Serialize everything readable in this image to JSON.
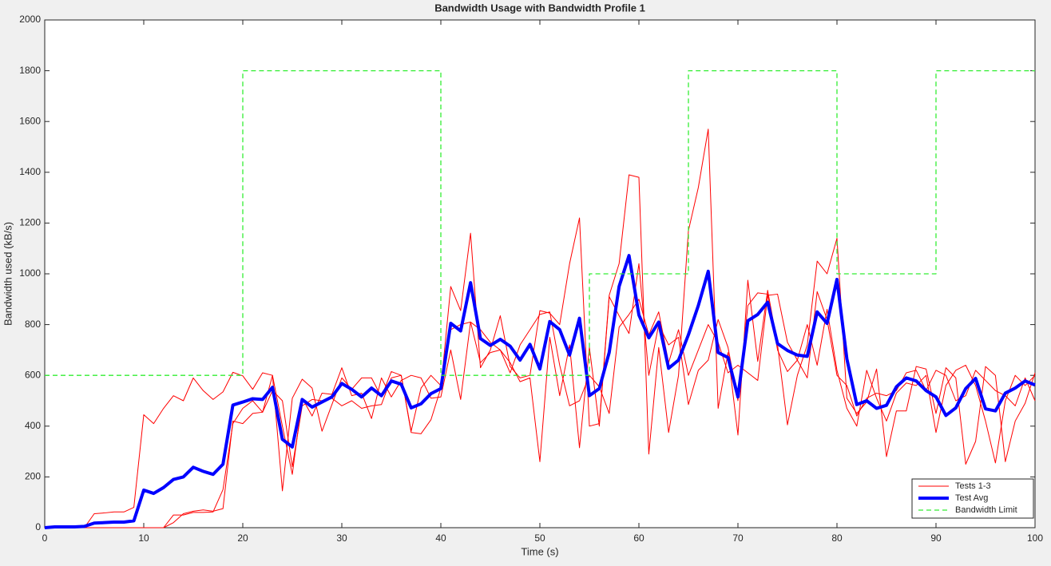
{
  "chart_data": {
    "type": "line",
    "title": "Bandwidth Usage with Bandwidth Profile 1",
    "x_label": "Time (s)",
    "y_label": "Bandwidth used (kB/s)",
    "xlim": [
      0,
      100
    ],
    "ylim": [
      0,
      2000
    ],
    "xticks": [
      0,
      10,
      20,
      30,
      40,
      50,
      60,
      70,
      80,
      90,
      100
    ],
    "yticks": [
      0,
      200,
      400,
      600,
      800,
      1000,
      1200,
      1400,
      1600,
      1800,
      2000
    ],
    "grid": false,
    "legend": "lower right",
    "x": [
      0,
      1,
      2,
      3,
      4,
      5,
      6,
      7,
      8,
      9,
      10,
      11,
      12,
      13,
      14,
      15,
      16,
      17,
      18,
      19,
      20,
      21,
      22,
      23,
      24,
      25,
      26,
      27,
      28,
      29,
      30,
      31,
      32,
      33,
      34,
      35,
      36,
      37,
      38,
      39,
      40,
      41,
      42,
      43,
      44,
      45,
      46,
      47,
      48,
      49,
      50,
      51,
      52,
      53,
      54,
      55,
      56,
      57,
      58,
      59,
      60,
      61,
      62,
      63,
      64,
      65,
      66,
      67,
      68,
      69,
      70,
      71,
      72,
      73,
      74,
      75,
      76,
      77,
      78,
      79,
      80,
      81,
      82,
      83,
      84,
      85,
      86,
      87,
      88,
      89,
      90,
      91,
      92,
      93,
      94,
      95,
      96,
      97,
      98,
      99,
      100
    ],
    "series": [
      {
        "name": "Tests 1-3",
        "color": "#ff0000",
        "line_width": 1,
        "dashed": false,
        "values": [
          0,
          0,
          0,
          0,
          0,
          55,
          58,
          62,
          62,
          80,
          445,
          410,
          470,
          520,
          500,
          590,
          540,
          505,
          535,
          612,
          598,
          545,
          610,
          600,
          145,
          510,
          585,
          550,
          380,
          485,
          590,
          545,
          590,
          590,
          515,
          615,
          600,
          375,
          370,
          425,
          550,
          950,
          855,
          1160,
          630,
          700,
          835,
          635,
          590,
          600,
          855,
          845,
          800,
          1040,
          1220,
          400,
          410,
          915,
          1040,
          1390,
          1380,
          290,
          710,
          375,
          600,
          1170,
          1340,
          1570,
          470,
          690,
          365,
          975,
          655,
          935,
          720,
          405,
          600,
          720,
          1050,
          1000,
          1140,
          510,
          450,
          495,
          625,
          280,
          460,
          460,
          635,
          625,
          450,
          630,
          590,
          250,
          340,
          635,
          600,
          260,
          420,
          490,
          610
        ]
      },
      {
        "color": "#ff0000",
        "line_width": 1,
        "dashed": false,
        "values": [
          0,
          0,
          0,
          0,
          0,
          0,
          0,
          0,
          0,
          0,
          0,
          0,
          0,
          20,
          55,
          65,
          70,
          65,
          75,
          420,
          410,
          450,
          455,
          600,
          400,
          210,
          510,
          440,
          530,
          525,
          630,
          520,
          530,
          430,
          590,
          515,
          580,
          600,
          590,
          510,
          515,
          700,
          505,
          810,
          650,
          690,
          700,
          650,
          575,
          590,
          260,
          750,
          520,
          720,
          315,
          710,
          400,
          910,
          835,
          765,
          1040,
          600,
          800,
          720,
          750,
          485,
          620,
          660,
          820,
          710,
          500,
          875,
          925,
          920,
          700,
          615,
          660,
          800,
          640,
          860,
          620,
          470,
          400,
          620,
          510,
          420,
          530,
          570,
          560,
          600,
          375,
          560,
          620,
          640,
          560,
          420,
          255,
          500,
          600,
          560,
          600
        ]
      },
      {
        "color": "#ff0000",
        "line_width": 1,
        "dashed": false,
        "values": [
          0,
          0,
          0,
          0,
          0,
          0,
          0,
          0,
          0,
          0,
          0,
          0,
          0,
          50,
          50,
          60,
          60,
          62,
          150,
          410,
          470,
          500,
          455,
          540,
          500,
          240,
          480,
          505,
          500,
          510,
          480,
          500,
          470,
          480,
          485,
          590,
          600,
          380,
          550,
          600,
          560,
          780,
          800,
          810,
          780,
          730,
          700,
          610,
          720,
          780,
          840,
          850,
          640,
          480,
          500,
          600,
          555,
          450,
          790,
          840,
          900,
          760,
          850,
          650,
          780,
          600,
          700,
          800,
          730,
          610,
          640,
          610,
          580,
          915,
          920,
          730,
          660,
          590,
          930,
          820,
          600,
          560,
          440,
          510,
          530,
          520,
          540,
          610,
          620,
          540,
          620,
          600,
          500,
          520,
          620,
          580,
          540,
          520,
          480,
          590,
          500
        ]
      },
      {
        "name": "Test Avg",
        "color": "#0000ff",
        "line_width": 4,
        "dashed": false,
        "values": [
          0,
          3,
          3,
          3,
          5,
          18,
          20,
          22,
          22,
          27,
          148,
          135,
          158,
          190,
          200,
          238,
          222,
          210,
          250,
          483,
          495,
          508,
          505,
          553,
          348,
          318,
          505,
          475,
          495,
          515,
          568,
          545,
          515,
          550,
          520,
          578,
          565,
          472,
          488,
          528,
          548,
          805,
          775,
          965,
          745,
          718,
          742,
          715,
          660,
          722,
          625,
          812,
          780,
          680,
          825,
          520,
          548,
          690,
          950,
          1072,
          838,
          748,
          810,
          628,
          660,
          760,
          875,
          1010,
          690,
          670,
          515,
          815,
          840,
          888,
          725,
          698,
          680,
          675,
          850,
          805,
          978,
          665,
          485,
          500,
          470,
          482,
          555,
          590,
          578,
          540,
          515,
          442,
          472,
          548,
          588,
          468,
          460,
          530,
          550,
          578,
          562
        ]
      },
      {
        "name": "Bandwidth Limit",
        "color": "#33ee33",
        "line_width": 1.3,
        "dashed": true,
        "x": [
          0,
          20,
          20,
          40,
          40,
          55,
          55,
          65,
          65,
          80,
          80,
          90,
          90,
          100
        ],
        "values": [
          600,
          600,
          1800,
          1800,
          600,
          600,
          1000,
          1000,
          1800,
          1800,
          1000,
          1000,
          1800,
          1800
        ]
      }
    ]
  }
}
